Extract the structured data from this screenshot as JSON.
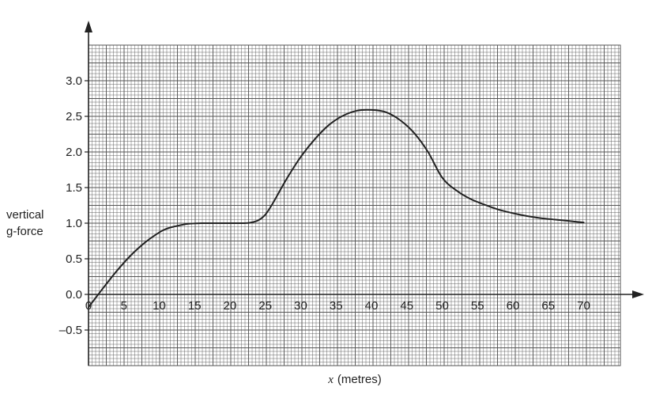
{
  "chart_data": {
    "type": "line",
    "xlabel_var": "x",
    "xlabel_unit": "(metres)",
    "ylabel_line1": "vertical",
    "ylabel_line2": "g-force",
    "xlim": [
      -0.2,
      75
    ],
    "ylim": [
      -1.0,
      3.5
    ],
    "x_ticks": [
      0,
      5,
      10,
      15,
      20,
      25,
      30,
      35,
      40,
      45,
      50,
      55,
      60,
      65,
      70
    ],
    "x_tick_labels": [
      "0",
      "5",
      "10",
      "15",
      "20",
      "25",
      "30",
      "35",
      "40",
      "45",
      "50",
      "55",
      "60",
      "65",
      "70"
    ],
    "y_ticks": [
      -0.5,
      0.0,
      0.5,
      1.0,
      1.5,
      2.0,
      2.5,
      3.0
    ],
    "y_tick_labels": [
      "–0.5",
      "0.0",
      "0.5",
      "1.0",
      "1.5",
      "2.0",
      "2.5",
      "3.0"
    ],
    "grid": true,
    "colors": {
      "grid": "#555555",
      "curve": "#222222",
      "axis": "#222222"
    },
    "series": [
      {
        "x": [
          0,
          2,
          4,
          6,
          8,
          10,
          11,
          12,
          14,
          16,
          18,
          20,
          22,
          23,
          24,
          25,
          26,
          28,
          30,
          32,
          34,
          36,
          38,
          40,
          42,
          44,
          46,
          48,
          50,
          52,
          54,
          56,
          58,
          60,
          62,
          64,
          66,
          68,
          70
        ],
        "y": [
          -0.18,
          0.08,
          0.33,
          0.55,
          0.73,
          0.87,
          0.92,
          0.95,
          0.99,
          1.0,
          1.0,
          1.0,
          1.0,
          1.01,
          1.04,
          1.12,
          1.27,
          1.62,
          1.93,
          2.18,
          2.38,
          2.51,
          2.58,
          2.59,
          2.56,
          2.45,
          2.27,
          2.0,
          1.64,
          1.46,
          1.34,
          1.26,
          1.19,
          1.14,
          1.1,
          1.07,
          1.05,
          1.03,
          1.01
        ]
      }
    ]
  }
}
